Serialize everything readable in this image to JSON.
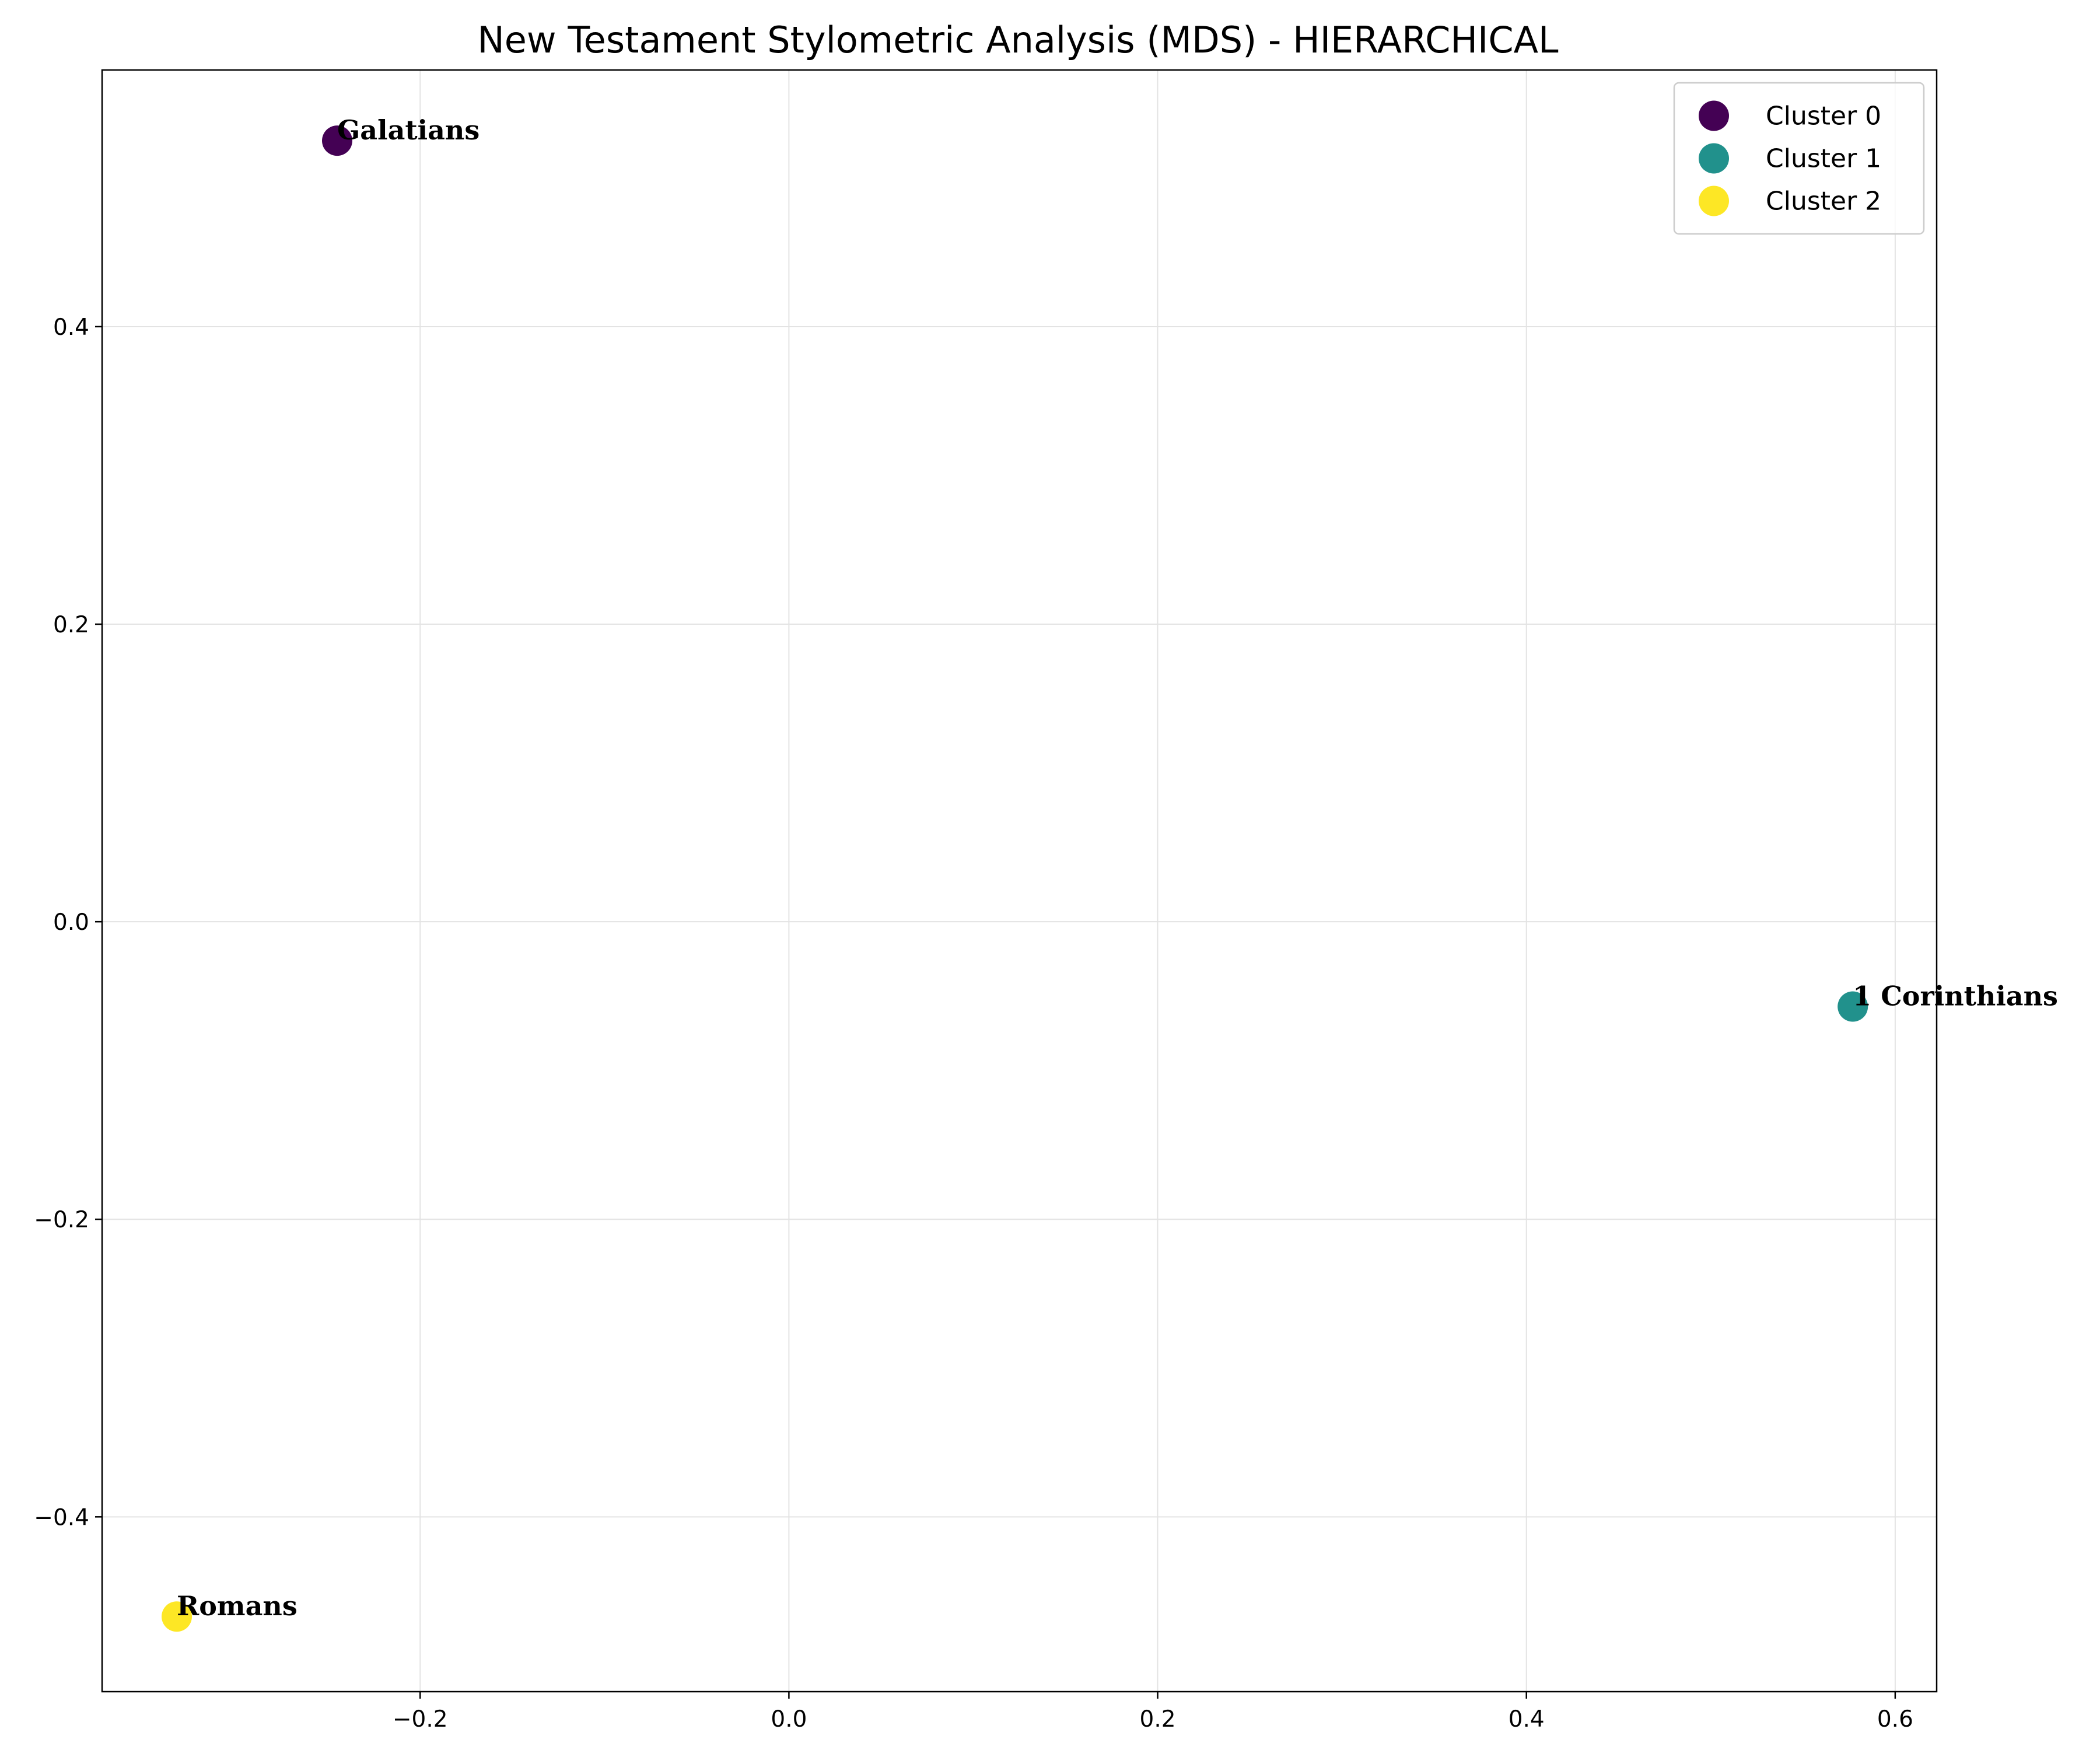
{
  "chart_data": {
    "type": "scatter",
    "title": "New Testament Stylometric Analysis (MDS) - HIERARCHICAL",
    "xlabel": "",
    "ylabel": "",
    "xlim": [
      -0.3725,
      0.6225
    ],
    "ylim": [
      -0.5175,
      0.5725
    ],
    "x_ticks": [
      -0.2,
      0.0,
      0.2,
      0.4,
      0.6
    ],
    "x_tick_labels": [
      "−0.2",
      "0.0",
      "0.2",
      "0.4",
      "0.6"
    ],
    "y_ticks": [
      -0.4,
      -0.2,
      0.0,
      0.2,
      0.4
    ],
    "y_tick_labels": [
      "−0.4",
      "−0.2",
      "0.0",
      "0.2",
      "0.4"
    ],
    "grid": true,
    "legend_position": "top-right",
    "series": [
      {
        "name": "Cluster 0",
        "color": "#440154",
        "points": [
          {
            "x": -0.245,
            "y": 0.525,
            "label": "Galatians"
          }
        ]
      },
      {
        "name": "Cluster 1",
        "color": "#21918c",
        "points": [
          {
            "x": 0.577,
            "y": -0.057,
            "label": "1 Corinthians"
          }
        ]
      },
      {
        "name": "Cluster 2",
        "color": "#fde725",
        "points": [
          {
            "x": -0.332,
            "y": -0.467,
            "label": "Romans"
          }
        ]
      }
    ]
  }
}
